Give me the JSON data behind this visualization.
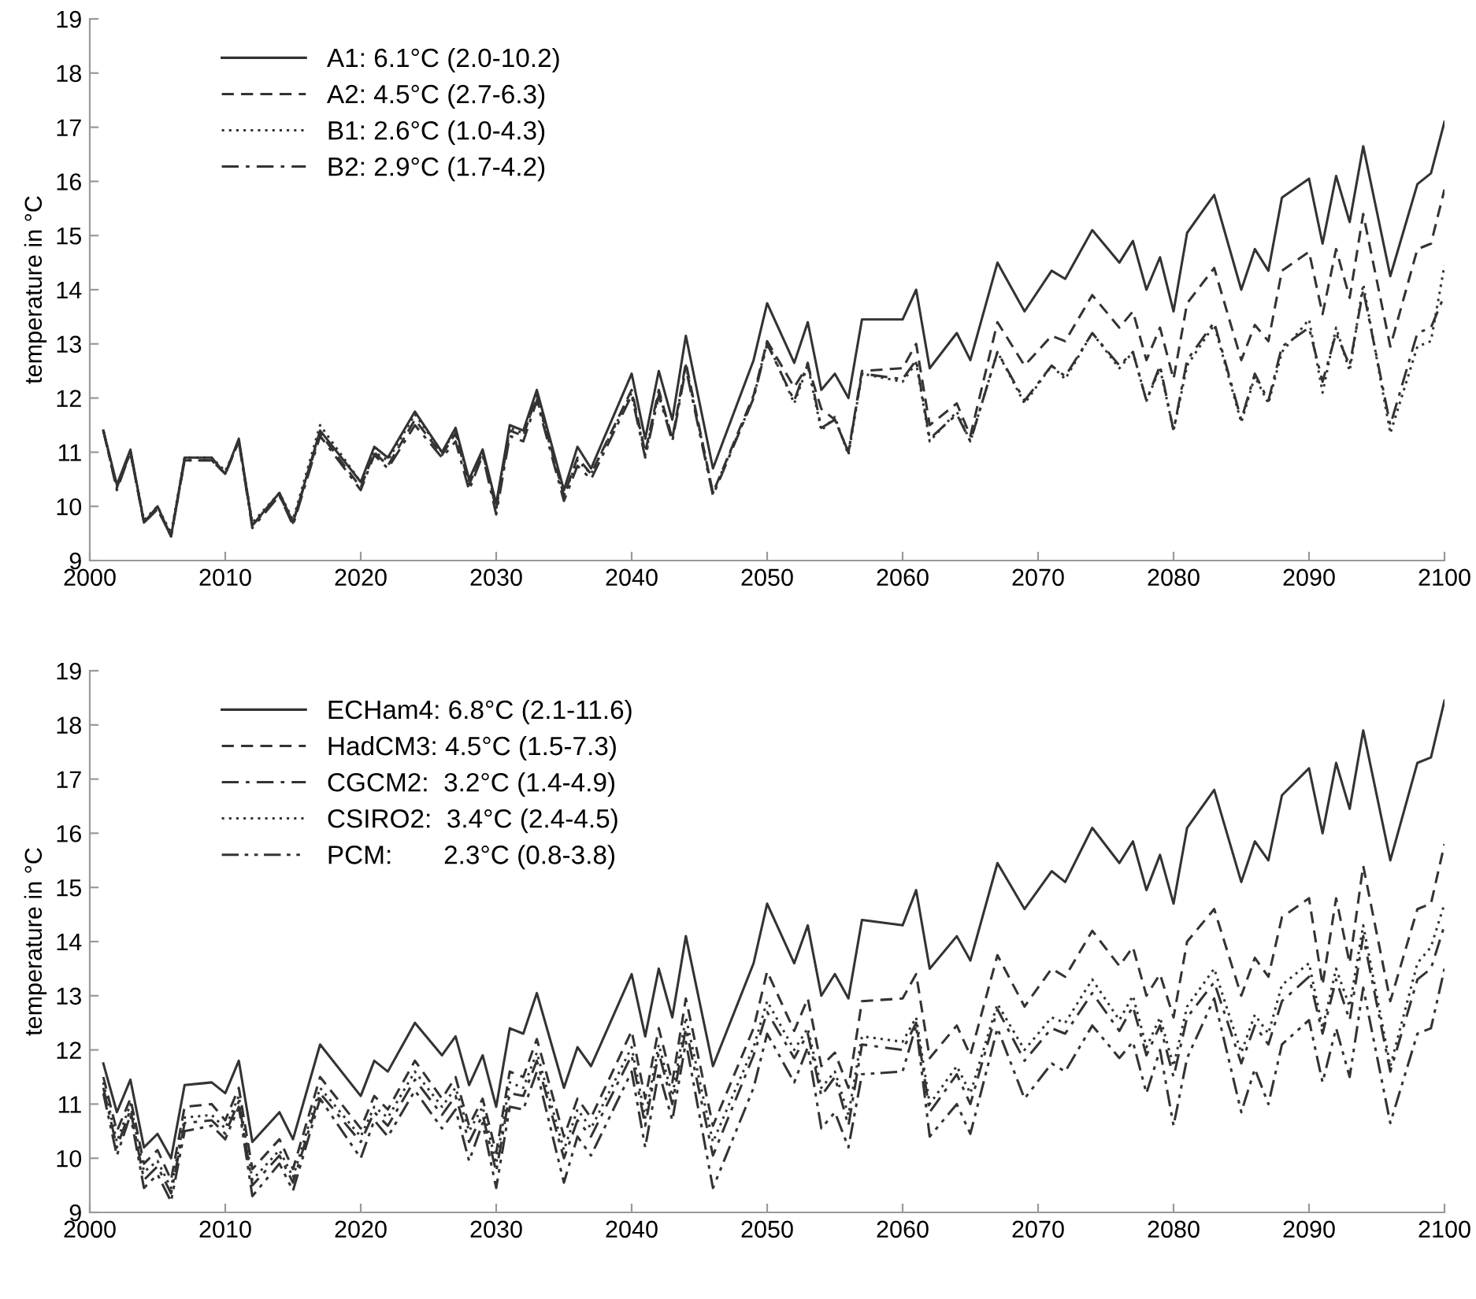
{
  "chart_data": [
    {
      "type": "line",
      "ylabel": "temperature in °C",
      "xlim": [
        2000,
        2100
      ],
      "xticks": [
        2000,
        2010,
        2020,
        2030,
        2040,
        2050,
        2060,
        2070,
        2080,
        2090,
        2100
      ],
      "ylim": [
        9,
        19
      ],
      "yticks": [
        9,
        10,
        11,
        12,
        13,
        14,
        15,
        16,
        17,
        18,
        19
      ],
      "grid": false,
      "legend": "top left",
      "marker": "none",
      "x": [
        2001,
        2002,
        2003,
        2004,
        2005,
        2006,
        2007,
        2009,
        2010,
        2011,
        2012,
        2014,
        2015,
        2017,
        2020,
        2021,
        2022,
        2024,
        2026,
        2027,
        2028,
        2029,
        2030,
        2031,
        2032,
        2033,
        2035,
        2036,
        2037,
        2040,
        2041,
        2042,
        2043,
        2044,
        2046,
        2049,
        2050,
        2052,
        2053,
        2054,
        2055,
        2056,
        2057,
        2060,
        2061,
        2062,
        2064,
        2065,
        2067,
        2069,
        2071,
        2072,
        2074,
        2076,
        2077,
        2078,
        2079,
        2080,
        2081,
        2083,
        2085,
        2086,
        2087,
        2088,
        2090,
        2091,
        2092,
        2093,
        2094,
        2096,
        2098,
        2099,
        2100
      ],
      "series": [
        {
          "name": "A1: 6.1°C (2.0-10.2)",
          "color": "#333333",
          "line_style": "solid",
          "values": [
            11.4,
            10.4,
            11.05,
            9.7,
            10.0,
            9.45,
            10.9,
            10.9,
            10.6,
            11.25,
            9.65,
            10.25,
            9.7,
            11.4,
            10.45,
            11.1,
            10.9,
            11.75,
            11.0,
            11.45,
            10.5,
            11.05,
            10.05,
            11.5,
            11.4,
            12.15,
            10.3,
            11.1,
            10.7,
            12.45,
            11.25,
            12.5,
            11.6,
            13.15,
            10.7,
            12.7,
            13.75,
            12.65,
            13.4,
            12.15,
            12.45,
            12.0,
            13.45,
            13.45,
            14.0,
            12.55,
            13.2,
            12.7,
            14.5,
            13.6,
            14.35,
            14.2,
            15.1,
            14.5,
            14.9,
            14.0,
            14.6,
            13.6,
            15.05,
            15.75,
            14.0,
            14.75,
            14.35,
            15.7,
            16.05,
            14.85,
            16.1,
            15.25,
            16.65,
            14.25,
            15.95,
            16.15,
            17.1
          ]
        },
        {
          "name": "A2: 4.5°C (2.7-6.3)",
          "color": "#333333",
          "line_style": "dashed",
          "values": [
            11.4,
            10.35,
            11.0,
            9.7,
            9.95,
            9.45,
            10.85,
            10.85,
            10.6,
            11.2,
            9.65,
            10.2,
            9.7,
            11.35,
            10.35,
            11.0,
            10.75,
            11.6,
            10.95,
            11.35,
            10.4,
            11.0,
            9.95,
            11.4,
            11.3,
            12.05,
            10.2,
            10.9,
            10.6,
            12.15,
            11.0,
            12.15,
            11.25,
            12.65,
            10.25,
            12.05,
            13.05,
            12.2,
            12.6,
            11.8,
            11.6,
            11.0,
            12.5,
            12.55,
            13.0,
            11.5,
            11.9,
            11.3,
            13.4,
            12.6,
            13.15,
            13.05,
            13.9,
            13.3,
            13.6,
            12.7,
            13.3,
            12.35,
            13.75,
            14.4,
            12.7,
            13.35,
            13.05,
            14.35,
            14.7,
            13.55,
            14.75,
            13.85,
            15.4,
            12.95,
            14.75,
            14.85,
            15.85
          ]
        },
        {
          "name": "B1: 2.6°C (1.0-4.3)",
          "color": "#333333",
          "line_style": "dotted",
          "values": [
            11.4,
            10.35,
            11.0,
            9.75,
            10.0,
            9.5,
            10.9,
            10.9,
            10.65,
            11.2,
            9.7,
            10.25,
            9.75,
            11.5,
            10.45,
            11.0,
            10.85,
            11.7,
            11.0,
            11.4,
            10.45,
            11.0,
            10.0,
            11.45,
            11.35,
            12.0,
            10.2,
            10.85,
            10.6,
            12.1,
            10.95,
            12.1,
            11.25,
            12.6,
            10.25,
            12.0,
            13.05,
            11.9,
            12.6,
            11.4,
            11.65,
            10.95,
            12.45,
            12.3,
            12.65,
            11.2,
            11.75,
            11.2,
            12.85,
            11.9,
            12.6,
            12.35,
            13.2,
            12.55,
            12.85,
            11.95,
            12.55,
            11.4,
            12.6,
            13.35,
            11.55,
            12.4,
            11.9,
            12.85,
            13.45,
            12.1,
            13.3,
            12.5,
            14.1,
            11.35,
            12.95,
            13.05,
            14.45
          ]
        },
        {
          "name": "B2: 2.9°C (1.7-4.2)",
          "color": "#333333",
          "line_style": "dashdot",
          "values": [
            11.4,
            10.3,
            11.0,
            9.7,
            9.95,
            9.45,
            10.85,
            10.85,
            10.6,
            11.2,
            9.6,
            10.2,
            9.65,
            11.3,
            10.3,
            10.95,
            10.7,
            11.5,
            10.9,
            11.2,
            10.3,
            10.95,
            9.85,
            11.3,
            11.2,
            11.95,
            10.1,
            10.75,
            10.5,
            12.05,
            10.9,
            12.05,
            11.2,
            12.55,
            10.2,
            12.0,
            13.0,
            11.95,
            12.65,
            11.45,
            11.6,
            11.0,
            12.45,
            12.35,
            12.7,
            11.25,
            11.7,
            11.2,
            12.85,
            11.95,
            12.6,
            12.4,
            13.2,
            12.6,
            12.85,
            11.95,
            12.6,
            11.4,
            12.7,
            13.4,
            11.6,
            12.45,
            11.95,
            12.95,
            13.3,
            12.3,
            13.2,
            12.6,
            14.0,
            11.5,
            13.2,
            13.3,
            13.9
          ]
        }
      ]
    },
    {
      "type": "line",
      "ylabel": "temperature in °C",
      "xlim": [
        2000,
        2100
      ],
      "xticks": [
        2000,
        2010,
        2020,
        2030,
        2040,
        2050,
        2060,
        2070,
        2080,
        2090,
        2100
      ],
      "ylim": [
        9,
        19
      ],
      "yticks": [
        9,
        10,
        11,
        12,
        13,
        14,
        15,
        16,
        17,
        18,
        19
      ],
      "grid": false,
      "legend": "top left",
      "marker": "none",
      "x": [
        2001,
        2002,
        2003,
        2004,
        2005,
        2006,
        2007,
        2009,
        2010,
        2011,
        2012,
        2014,
        2015,
        2017,
        2020,
        2021,
        2022,
        2024,
        2026,
        2027,
        2028,
        2029,
        2030,
        2031,
        2032,
        2033,
        2035,
        2036,
        2037,
        2040,
        2041,
        2042,
        2043,
        2044,
        2046,
        2049,
        2050,
        2052,
        2053,
        2054,
        2055,
        2056,
        2057,
        2060,
        2061,
        2062,
        2064,
        2065,
        2067,
        2069,
        2071,
        2072,
        2074,
        2076,
        2077,
        2078,
        2079,
        2080,
        2081,
        2083,
        2085,
        2086,
        2087,
        2088,
        2090,
        2091,
        2092,
        2093,
        2094,
        2096,
        2098,
        2099,
        2100
      ],
      "series": [
        {
          "name": "ECHam4: 6.8°C (2.1-11.6)",
          "color": "#333333",
          "line_style": "solid",
          "values": [
            11.75,
            10.85,
            11.45,
            10.2,
            10.45,
            10.0,
            11.35,
            11.4,
            11.2,
            11.8,
            10.3,
            10.85,
            10.35,
            12.1,
            11.15,
            11.8,
            11.6,
            12.5,
            11.9,
            12.25,
            11.35,
            11.9,
            10.95,
            12.4,
            12.3,
            13.05,
            11.3,
            12.05,
            11.7,
            13.4,
            12.25,
            13.5,
            12.6,
            14.1,
            11.7,
            13.6,
            14.7,
            13.6,
            14.3,
            13.0,
            13.4,
            12.95,
            14.4,
            14.3,
            14.95,
            13.5,
            14.1,
            13.65,
            15.45,
            14.6,
            15.3,
            15.1,
            16.1,
            15.45,
            15.85,
            14.95,
            15.6,
            14.7,
            16.1,
            16.8,
            15.1,
            15.85,
            15.5,
            16.7,
            17.2,
            16.0,
            17.3,
            16.45,
            17.9,
            15.5,
            17.3,
            17.4,
            18.45
          ]
        },
        {
          "name": "HadCM3: 4.5°C (1.5-7.3)",
          "color": "#333333",
          "line_style": "dashed",
          "values": [
            11.5,
            10.5,
            11.1,
            9.9,
            10.15,
            9.6,
            10.95,
            11.0,
            10.7,
            11.3,
            9.8,
            10.35,
            9.8,
            11.5,
            10.55,
            11.15,
            10.9,
            11.8,
            11.1,
            11.5,
            10.6,
            11.1,
            10.1,
            11.6,
            11.5,
            12.2,
            10.4,
            11.1,
            10.75,
            12.35,
            11.1,
            12.4,
            11.4,
            12.95,
            10.6,
            12.4,
            13.45,
            12.35,
            12.95,
            11.7,
            11.95,
            11.3,
            12.9,
            12.95,
            13.4,
            11.85,
            12.45,
            11.9,
            13.75,
            12.8,
            13.5,
            13.35,
            14.2,
            13.55,
            13.9,
            13.0,
            13.4,
            12.6,
            14.0,
            14.6,
            13.0,
            13.7,
            13.35,
            14.45,
            14.8,
            13.2,
            14.8,
            13.6,
            15.4,
            12.9,
            14.6,
            14.7,
            15.8
          ]
        },
        {
          "name": "CGCM2:  3.2°C (1.4-4.9)",
          "color": "#333333",
          "line_style": "dashdot",
          "values": [
            11.3,
            10.2,
            10.9,
            9.6,
            9.85,
            9.35,
            10.65,
            10.7,
            10.45,
            11.05,
            9.5,
            10.05,
            9.55,
            11.2,
            10.3,
            10.85,
            10.6,
            11.45,
            10.8,
            11.15,
            10.3,
            10.8,
            9.75,
            11.2,
            11.15,
            11.8,
            10.0,
            10.7,
            10.4,
            11.9,
            10.6,
            11.95,
            11.0,
            12.4,
            10.05,
            11.9,
            12.7,
            11.85,
            12.3,
            11.15,
            11.5,
            10.6,
            12.1,
            12.0,
            12.5,
            10.85,
            11.55,
            11.0,
            12.75,
            11.8,
            12.4,
            12.3,
            13.05,
            12.35,
            12.8,
            11.9,
            12.45,
            11.5,
            12.6,
            13.25,
            11.75,
            12.45,
            12.1,
            12.9,
            13.35,
            12.3,
            13.3,
            12.55,
            14.1,
            11.6,
            13.3,
            13.5,
            14.3
          ]
        },
        {
          "name": "CSIRO2:  3.4°C (2.4-4.5)",
          "color": "#333333",
          "line_style": "dotted",
          "values": [
            11.4,
            10.3,
            11.0,
            9.75,
            9.95,
            9.45,
            10.75,
            10.8,
            10.55,
            11.15,
            9.6,
            10.15,
            9.65,
            11.3,
            10.4,
            10.95,
            10.75,
            11.6,
            10.95,
            11.3,
            10.5,
            10.95,
            9.9,
            11.4,
            11.3,
            11.95,
            10.15,
            10.9,
            10.55,
            12.05,
            10.75,
            12.1,
            11.15,
            12.6,
            10.3,
            12.05,
            12.9,
            12.0,
            12.4,
            11.3,
            11.6,
            10.8,
            12.25,
            12.15,
            12.6,
            11.0,
            11.7,
            11.2,
            12.85,
            12.0,
            12.6,
            12.5,
            13.3,
            12.55,
            13.0,
            12.05,
            12.6,
            11.7,
            12.8,
            13.5,
            11.95,
            12.65,
            12.3,
            13.2,
            13.6,
            12.4,
            13.5,
            12.8,
            14.3,
            11.7,
            13.6,
            13.9,
            14.7
          ]
        },
        {
          "name": "PCM:       2.3°C (0.8-3.8)",
          "color": "#333333",
          "line_style": "dashdotdot",
          "values": [
            11.2,
            10.05,
            10.8,
            9.45,
            9.7,
            9.2,
            10.5,
            10.6,
            10.35,
            10.95,
            9.3,
            9.9,
            9.4,
            11.1,
            10.0,
            10.7,
            10.4,
            11.25,
            10.55,
            10.9,
            9.95,
            10.65,
            9.45,
            10.95,
            10.9,
            11.6,
            9.55,
            10.4,
            10.05,
            11.6,
            10.2,
            11.6,
            10.7,
            12.15,
            9.45,
            11.3,
            12.3,
            11.4,
            12.05,
            10.55,
            10.85,
            10.2,
            11.55,
            11.6,
            12.45,
            10.4,
            11.0,
            10.45,
            12.4,
            11.1,
            11.75,
            11.6,
            12.45,
            11.85,
            12.15,
            11.2,
            12.0,
            10.6,
            11.85,
            12.95,
            10.85,
            11.65,
            11.0,
            12.1,
            12.55,
            11.4,
            12.4,
            11.5,
            13.15,
            10.65,
            12.3,
            12.4,
            13.5
          ]
        }
      ]
    }
  ]
}
